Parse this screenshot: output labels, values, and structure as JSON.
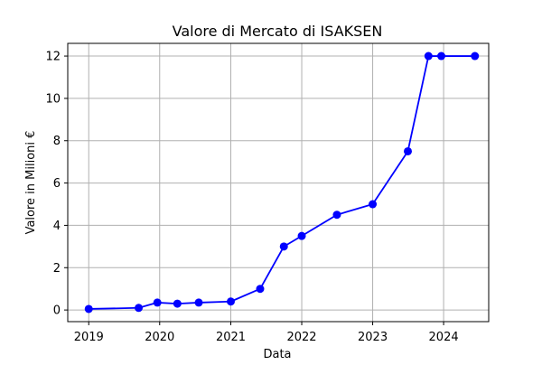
{
  "chart_data": {
    "type": "line",
    "title": "Valore di Mercato di ISAKSEN",
    "xlabel": "Data",
    "ylabel": "Valore in Milioni €",
    "x_axis_type": "date",
    "x_ticks": [
      "2019",
      "2020",
      "2021",
      "2022",
      "2023",
      "2024"
    ],
    "y_ticks": [
      "0",
      "2",
      "4",
      "6",
      "8",
      "10",
      "12"
    ],
    "xlim": [
      "2018-09-15",
      "2024-08-20"
    ],
    "ylim": [
      -0.55,
      12.6
    ],
    "grid": true,
    "line_color": "#0000ff",
    "marker": "circle",
    "series": [
      {
        "x": [
          "2019-01-01",
          "2019-09-15",
          "2019-12-20",
          "2020-04-01",
          "2020-07-20",
          "2021-01-01",
          "2021-06-01",
          "2021-10-01",
          "2022-01-01",
          "2022-07-01",
          "2023-01-01",
          "2023-07-01",
          "2023-10-15",
          "2023-12-20",
          "2024-06-10"
        ],
        "y": [
          0.05,
          0.1,
          0.35,
          0.3,
          0.35,
          0.4,
          1.0,
          3.0,
          3.5,
          4.5,
          5.0,
          7.5,
          12.0,
          12.0,
          12.0
        ]
      }
    ]
  }
}
